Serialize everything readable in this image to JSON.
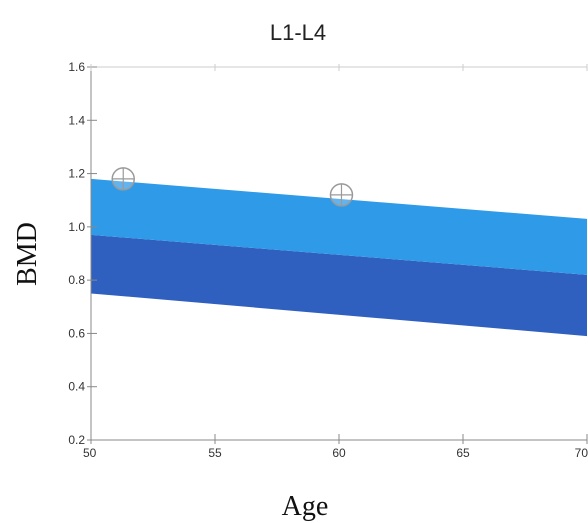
{
  "chart_data": {
    "type": "area",
    "title": "L1-L4",
    "xlabel": "Age",
    "ylabel": "BMD",
    "xlim": [
      50,
      70
    ],
    "ylim": [
      0.2,
      1.6
    ],
    "x_ticks": [
      "50",
      "55",
      "60",
      "65",
      "70"
    ],
    "y_ticks": [
      "0.2",
      "0.4",
      "0.6",
      "0.8",
      "1.0",
      "1.2",
      "1.4",
      "1.6"
    ],
    "grid": false,
    "bands": [
      {
        "color": "#2f5fbf",
        "x": [
          50,
          70
        ],
        "lower": [
          0.75,
          0.59
        ],
        "upper": [
          0.97,
          0.82
        ]
      },
      {
        "color": "#2f9be8",
        "x": [
          50,
          70
        ],
        "lower": [
          0.97,
          0.82
        ],
        "upper": [
          1.18,
          1.03
        ]
      }
    ],
    "series": [
      {
        "type": "scatter",
        "marker": "circle-cross",
        "points": [
          {
            "x": 51.3,
            "y": 1.18
          },
          {
            "x": 60.1,
            "y": 1.12
          }
        ]
      }
    ],
    "colors": {
      "axis": "#888888",
      "marker": "#9a9a9a"
    }
  }
}
